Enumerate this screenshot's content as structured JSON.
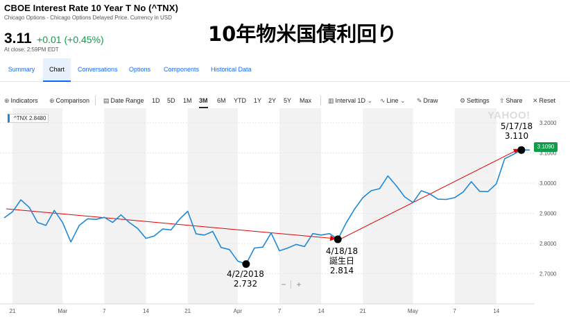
{
  "quote": {
    "title": "CBOE Interest Rate 10 Year T No (^TNX)",
    "subtitle": "Chicago Options - Chicago Options Delayed Price. Currency in USD",
    "price": "3.11",
    "change": "+0.01 (+0.45%)",
    "close_note": "At close: 2:59PM EDT"
  },
  "annotation_title": "10年物米国債利回り",
  "tabs": [
    "Summary",
    "Chart",
    "Conversations",
    "Options",
    "Components",
    "Historical Data"
  ],
  "toolbar": {
    "indicators": "Indicators",
    "comparison": "Comparison",
    "date_range": "Date Range",
    "ranges": [
      "1D",
      "5D",
      "1M",
      "3M",
      "6M",
      "YTD",
      "1Y",
      "2Y",
      "5Y",
      "Max"
    ],
    "selected_range": "3M",
    "interval": "Interval",
    "interval_value": "1D",
    "line": "Line",
    "draw": "Draw",
    "settings": "Settings",
    "share": "Share",
    "reset": "Reset"
  },
  "legend_label": "^TNX 2.8480",
  "current_price_tag": "3.1090",
  "watermark": "YAHOO!",
  "zoom": {
    "minus": "−",
    "plus": "+"
  },
  "notes": {
    "low": {
      "date": "4/2/2018",
      "value": "2.732"
    },
    "birthday": {
      "date": "4/18/18",
      "label": "誕生日",
      "value": "2.814"
    },
    "latest": {
      "date": "5/17/18",
      "value": "3.110"
    }
  },
  "colors": {
    "line": "#1e88d8",
    "trend": "#e00000",
    "positive": "#109d4b",
    "accent": "#0f69ff"
  },
  "chart_data": {
    "type": "line",
    "series": [
      {
        "values": [
          2.885,
          2.905,
          2.945,
          2.92,
          2.87,
          2.86,
          2.91,
          2.87,
          2.805,
          2.86,
          2.882,
          2.88,
          2.887,
          2.87,
          2.895,
          2.87,
          2.85,
          2.817,
          2.825,
          2.848,
          2.845,
          2.88,
          2.907,
          2.832,
          2.828,
          2.84,
          2.787,
          2.78,
          2.742,
          2.732,
          2.785,
          2.788,
          2.835,
          2.776,
          2.785,
          2.797,
          2.79,
          2.833,
          2.828,
          2.833,
          2.814,
          2.868,
          2.914,
          2.952,
          2.975,
          2.982,
          3.024,
          2.992,
          2.955,
          2.936,
          2.975,
          2.965,
          2.947,
          2.946,
          2.952,
          2.97,
          3.005,
          2.973,
          2.972,
          2.998,
          3.081,
          3.095,
          3.11,
          3.11
        ]
      }
    ],
    "x_tick_labels": [
      "21",
      "Mar",
      "7",
      "14",
      "21",
      "Apr",
      "7",
      "14",
      "21",
      "May",
      "7",
      "14"
    ],
    "y_ticks": [
      2.7,
      2.8,
      2.9,
      3.0,
      3.1,
      3.2
    ],
    "y_tick_labels": [
      "2.7000",
      "2.8000",
      "2.9000",
      "3.0000",
      "3.1000",
      "3.2000"
    ],
    "ylim": [
      2.6,
      3.23
    ],
    "trend_lines": [
      {
        "from": 0,
        "from_value": 2.915,
        "to": 40,
        "to_value": 2.814
      },
      {
        "from": 40,
        "from_value": 2.814,
        "to": 62,
        "to_value": 3.11
      }
    ],
    "markers": [
      {
        "index": 29,
        "value": 2.732
      },
      {
        "index": 40,
        "value": 2.814
      },
      {
        "index": 62,
        "value": 3.11
      }
    ],
    "grid": true,
    "axis_position": "right"
  }
}
